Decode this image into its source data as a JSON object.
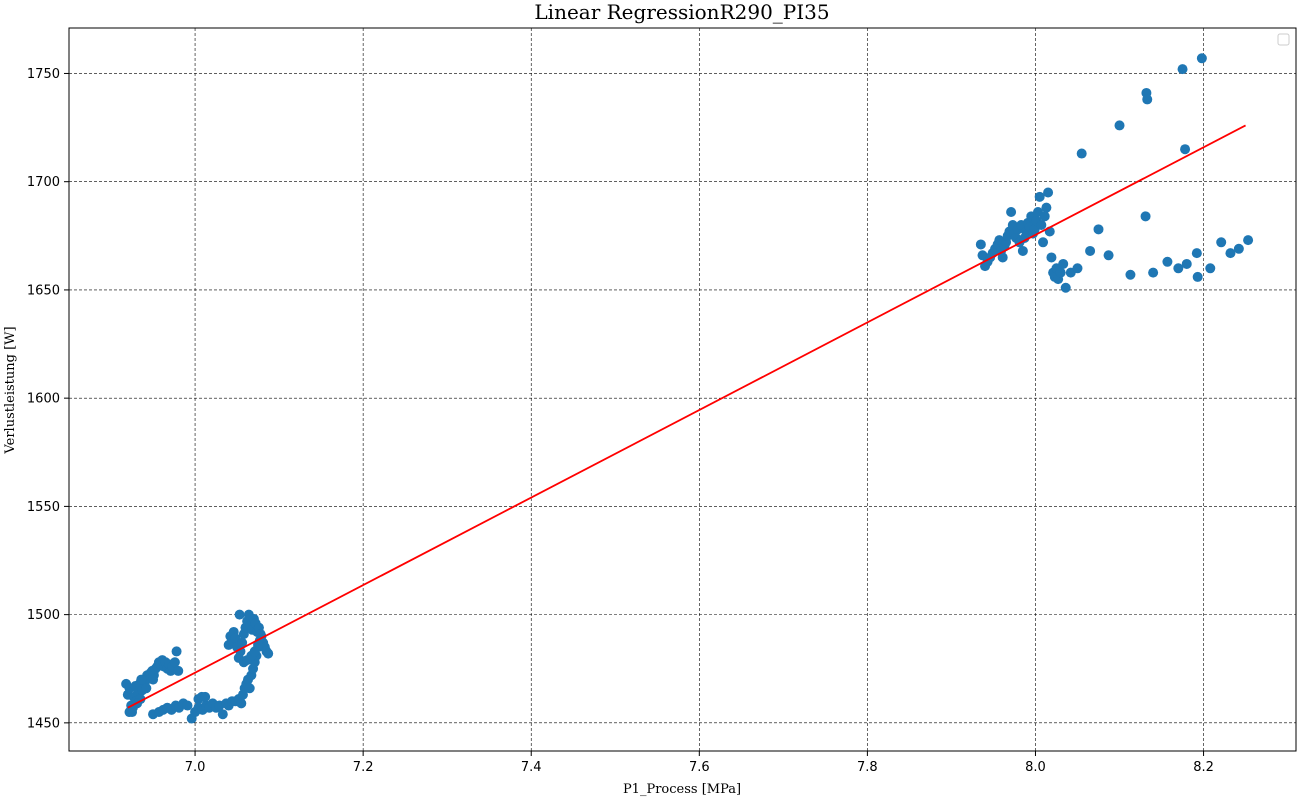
{
  "chart_data": {
    "type": "scatter",
    "title": "Linear RegressionR290_PI35",
    "xlabel": "P1_Process [MPa]",
    "ylabel": "Verlustleistung [W]",
    "xlim": [
      6.85,
      8.31
    ],
    "ylim": [
      1437,
      1771
    ],
    "xticks": [
      7.0,
      7.2,
      7.4,
      7.6,
      7.8,
      8.0,
      8.2
    ],
    "xtick_labels": [
      "7.0",
      "7.2",
      "7.4",
      "7.6",
      "7.8",
      "8.0",
      "8.2"
    ],
    "yticks": [
      1450,
      1500,
      1550,
      1600,
      1650,
      1700,
      1750
    ],
    "ytick_labels": [
      "1450",
      "1500",
      "1550",
      "1600",
      "1650",
      "1700",
      "1750"
    ],
    "grid": true,
    "legend": "top-right (empty)",
    "colors": {
      "points": "#1f77b4",
      "fit": "#ff0000",
      "grid": "#000000"
    },
    "fit_line": {
      "x": [
        6.92,
        8.25
      ],
      "y": [
        1457,
        1726
      ]
    },
    "series": [
      {
        "points": [
          [
            6.918,
            1468
          ],
          [
            6.92,
            1463
          ],
          [
            6.922,
            1466
          ],
          [
            6.924,
            1458
          ],
          [
            6.925,
            1455
          ],
          [
            6.927,
            1462
          ],
          [
            6.929,
            1467
          ],
          [
            6.93,
            1460
          ],
          [
            6.932,
            1464
          ],
          [
            6.934,
            1468
          ],
          [
            6.935,
            1461
          ],
          [
            6.937,
            1465
          ],
          [
            6.939,
            1469
          ],
          [
            6.941,
            1470
          ],
          [
            6.943,
            1472
          ],
          [
            6.945,
            1471
          ],
          [
            6.947,
            1473
          ],
          [
            6.949,
            1474
          ],
          [
            6.951,
            1472
          ],
          [
            6.953,
            1475
          ],
          [
            6.955,
            1476
          ],
          [
            6.957,
            1478
          ],
          [
            6.959,
            1477
          ],
          [
            6.961,
            1479
          ],
          [
            6.963,
            1476
          ],
          [
            6.965,
            1478
          ],
          [
            6.967,
            1475
          ],
          [
            6.969,
            1477
          ],
          [
            6.971,
            1474
          ],
          [
            6.973,
            1476
          ],
          [
            6.976,
            1478
          ],
          [
            6.978,
            1483
          ],
          [
            6.98,
            1474
          ],
          [
            6.94,
            1468
          ],
          [
            6.936,
            1470
          ],
          [
            6.926,
            1457
          ],
          [
            6.922,
            1455
          ],
          [
            6.931,
            1459
          ],
          [
            6.942,
            1466
          ],
          [
            6.95,
            1470
          ],
          [
            6.95,
            1454
          ],
          [
            6.957,
            1455
          ],
          [
            6.962,
            1456
          ],
          [
            6.967,
            1457
          ],
          [
            6.972,
            1456
          ],
          [
            6.977,
            1458
          ],
          [
            6.981,
            1457
          ],
          [
            6.986,
            1459
          ],
          [
            6.991,
            1458
          ],
          [
            6.996,
            1452
          ],
          [
            7.0,
            1455
          ],
          [
            7.004,
            1457
          ],
          [
            7.009,
            1456
          ],
          [
            7.013,
            1458
          ],
          [
            7.017,
            1457
          ],
          [
            7.021,
            1459
          ],
          [
            7.025,
            1457
          ],
          [
            7.029,
            1458
          ],
          [
            7.033,
            1454
          ],
          [
            7.037,
            1459
          ],
          [
            7.004,
            1461
          ],
          [
            7.008,
            1462
          ],
          [
            7.012,
            1462
          ],
          [
            7.04,
            1458
          ],
          [
            7.044,
            1460
          ],
          [
            7.048,
            1460
          ],
          [
            7.052,
            1461
          ],
          [
            7.055,
            1459
          ],
          [
            7.057,
            1463
          ],
          [
            7.059,
            1466
          ],
          [
            7.061,
            1468
          ],
          [
            7.063,
            1470
          ],
          [
            7.065,
            1466
          ],
          [
            7.067,
            1472
          ],
          [
            7.069,
            1475
          ],
          [
            7.071,
            1478
          ],
          [
            7.073,
            1481
          ],
          [
            7.075,
            1485
          ],
          [
            7.077,
            1488
          ],
          [
            7.079,
            1490
          ],
          [
            7.081,
            1487
          ],
          [
            7.083,
            1485
          ],
          [
            7.085,
            1483
          ],
          [
            7.087,
            1482
          ],
          [
            7.04,
            1486
          ],
          [
            7.042,
            1490
          ],
          [
            7.044,
            1488
          ],
          [
            7.046,
            1492
          ],
          [
            7.048,
            1489
          ],
          [
            7.05,
            1485
          ],
          [
            7.052,
            1480
          ],
          [
            7.054,
            1483
          ],
          [
            7.056,
            1487
          ],
          [
            7.058,
            1491
          ],
          [
            7.06,
            1494
          ],
          [
            7.062,
            1497
          ],
          [
            7.064,
            1500
          ],
          [
            7.066,
            1495
          ],
          [
            7.068,
            1493
          ],
          [
            7.07,
            1498
          ],
          [
            7.072,
            1496
          ],
          [
            7.074,
            1492
          ],
          [
            7.076,
            1494
          ],
          [
            7.078,
            1491
          ],
          [
            7.053,
            1500
          ],
          [
            7.058,
            1478
          ],
          [
            7.062,
            1479
          ],
          [
            7.067,
            1481
          ],
          [
            7.071,
            1483
          ],
          [
            7.075,
            1486
          ],
          [
            7.935,
            1671
          ],
          [
            7.937,
            1666
          ],
          [
            7.94,
            1661
          ],
          [
            7.943,
            1663
          ],
          [
            7.946,
            1665
          ],
          [
            7.949,
            1667
          ],
          [
            7.952,
            1669
          ],
          [
            7.955,
            1671
          ],
          [
            7.957,
            1673
          ],
          [
            7.959,
            1668
          ],
          [
            7.961,
            1665
          ],
          [
            7.963,
            1670
          ],
          [
            7.965,
            1672
          ],
          [
            7.967,
            1675
          ],
          [
            7.969,
            1677
          ],
          [
            7.971,
            1686
          ],
          [
            7.973,
            1680
          ],
          [
            7.975,
            1676
          ],
          [
            7.977,
            1674
          ],
          [
            7.979,
            1678
          ],
          [
            7.981,
            1672
          ],
          [
            7.983,
            1680
          ],
          [
            7.985,
            1668
          ],
          [
            7.987,
            1674
          ],
          [
            7.989,
            1677
          ],
          [
            7.991,
            1681
          ],
          [
            7.993,
            1679
          ],
          [
            7.995,
            1684
          ],
          [
            7.997,
            1676
          ],
          [
            7.999,
            1678
          ],
          [
            8.001,
            1682
          ],
          [
            8.003,
            1686
          ],
          [
            8.005,
            1693
          ],
          [
            8.007,
            1680
          ],
          [
            8.009,
            1672
          ],
          [
            8.011,
            1684
          ],
          [
            8.013,
            1688
          ],
          [
            8.015,
            1695
          ],
          [
            8.017,
            1677
          ],
          [
            8.019,
            1665
          ],
          [
            8.021,
            1658
          ],
          [
            8.023,
            1656
          ],
          [
            8.025,
            1660
          ],
          [
            8.027,
            1655
          ],
          [
            8.03,
            1658
          ],
          [
            8.033,
            1662
          ],
          [
            8.036,
            1651
          ],
          [
            8.042,
            1658
          ],
          [
            8.05,
            1660
          ],
          [
            8.055,
            1713
          ],
          [
            8.065,
            1668
          ],
          [
            8.075,
            1678
          ],
          [
            8.087,
            1666
          ],
          [
            8.1,
            1726
          ],
          [
            8.113,
            1657
          ],
          [
            8.131,
            1684
          ],
          [
            8.132,
            1741
          ],
          [
            8.133,
            1738
          ],
          [
            8.14,
            1658
          ],
          [
            8.157,
            1663
          ],
          [
            8.17,
            1660
          ],
          [
            8.175,
            1752
          ],
          [
            8.178,
            1715
          ],
          [
            8.18,
            1662
          ],
          [
            8.192,
            1667
          ],
          [
            8.193,
            1656
          ],
          [
            8.198,
            1757
          ],
          [
            8.208,
            1660
          ],
          [
            8.221,
            1672
          ],
          [
            8.232,
            1667
          ],
          [
            8.242,
            1669
          ],
          [
            8.253,
            1673
          ]
        ]
      }
    ]
  }
}
